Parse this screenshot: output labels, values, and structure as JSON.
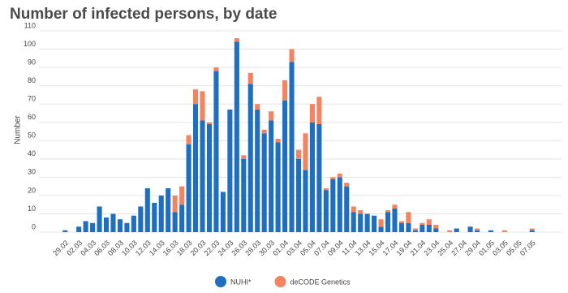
{
  "chart_data": {
    "type": "stacked_bar",
    "title": "Number of infected persons, by date",
    "y_label": "Number",
    "categories": [
      "29.02",
      null,
      "02.03",
      null,
      "04.03",
      null,
      "06.03",
      null,
      "08.03",
      null,
      "10.03",
      null,
      "12.03",
      null,
      "14.03",
      null,
      "16.03",
      null,
      "18.03",
      null,
      "20.03",
      null,
      "22.03",
      null,
      "24.03",
      null,
      "26.03",
      null,
      "28.03",
      null,
      "30.03",
      null,
      "01.04",
      null,
      "03.04",
      null,
      "05.04",
      null,
      "07.04",
      null,
      "09.04",
      null,
      "11.04",
      null,
      "13.04",
      null,
      "15.04",
      null,
      "17.04",
      null,
      "19.04",
      null,
      "21.04",
      null,
      "23.04",
      null,
      "25.04",
      null,
      "27.04",
      null,
      "29.04",
      null,
      "01.05",
      null,
      "03.05",
      null,
      "05.05",
      null,
      "07.05"
    ],
    "series": [
      {
        "name": "NUHI*",
        "color": "#1f6fc0",
        "values": [
          1,
          0,
          3,
          6,
          5,
          14,
          8,
          10,
          7,
          5,
          9,
          14,
          24,
          16,
          20,
          24,
          11,
          15,
          48,
          70,
          61,
          59,
          88,
          22,
          67,
          104,
          40,
          81,
          67,
          54,
          61,
          49,
          72,
          93,
          40,
          34,
          60,
          59,
          23,
          29,
          30,
          25,
          11,
          10,
          10,
          9,
          3,
          11,
          13,
          5,
          5,
          1,
          4,
          4,
          2,
          0,
          0,
          2,
          0,
          3,
          1,
          0,
          1,
          0,
          0,
          0,
          0,
          0,
          1
        ]
      },
      {
        "name": "deCODE Genetics",
        "color": "#f4845f",
        "values": [
          0,
          0,
          0,
          0,
          0,
          0,
          0,
          0,
          0,
          0,
          0,
          0,
          0,
          0,
          0,
          0,
          9,
          10,
          5,
          8,
          16,
          1,
          2,
          0,
          0,
          2,
          2,
          6,
          3,
          2,
          5,
          2,
          11,
          7,
          5,
          20,
          10,
          15,
          1,
          1,
          2,
          2,
          3,
          2,
          0,
          0,
          4,
          1,
          2,
          1,
          6,
          1,
          1,
          3,
          2,
          0,
          1,
          0,
          0,
          0,
          1,
          0,
          0,
          0,
          1,
          0,
          0,
          0,
          1
        ]
      }
    ],
    "ylim": [
      0,
      110
    ],
    "yticks": [
      0,
      10,
      20,
      30,
      40,
      50,
      60,
      70,
      80,
      90,
      100,
      110
    ],
    "grid": true,
    "legend": "bottom"
  }
}
